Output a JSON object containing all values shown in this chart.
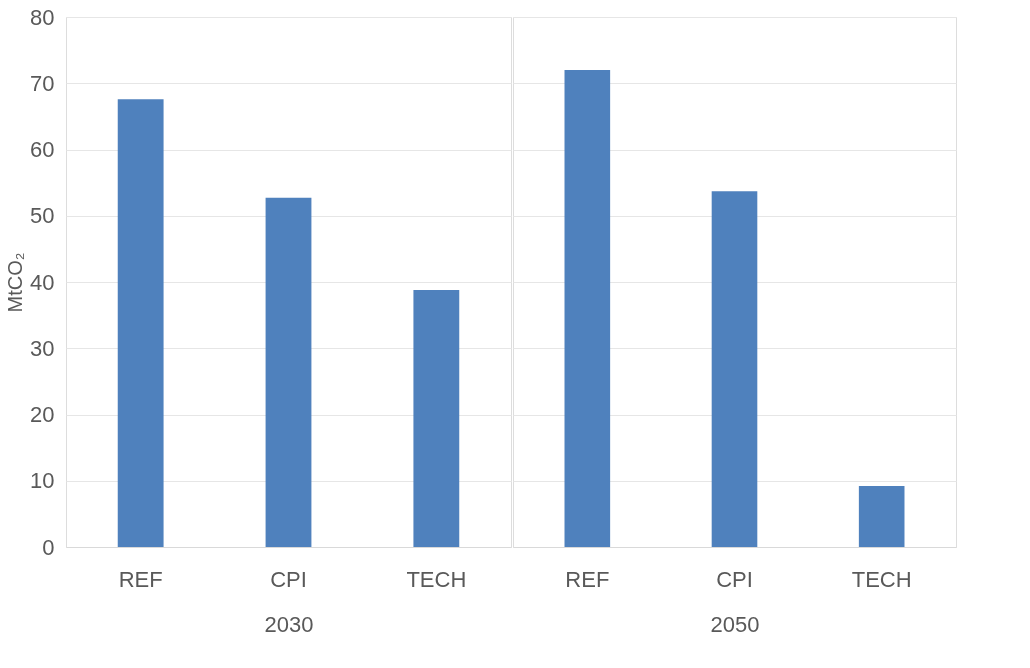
{
  "chart_data": [
    {
      "type": "bar",
      "ylabel": "MtCO₂",
      "xlabel": "2030",
      "categories": [
        "REF",
        "CPI",
        "TECH"
      ],
      "values": [
        67.6,
        52.7,
        38.8
      ],
      "color": "#4f81bd",
      "ylim": [
        0,
        80
      ],
      "yticks": [
        0,
        10,
        20,
        30,
        40,
        50,
        60,
        70,
        80
      ],
      "grid": "y"
    },
    {
      "type": "bar",
      "xlabel": "2050",
      "categories": [
        "REF",
        "CPI",
        "TECH"
      ],
      "values": [
        72.0,
        53.7,
        9.2
      ],
      "color": "#4f81bd",
      "ylim": [
        0,
        80
      ],
      "yticks": [
        0,
        10,
        20,
        30,
        40,
        50,
        60,
        70,
        80
      ],
      "grid": "y",
      "tick_labels": "x"
    }
  ]
}
